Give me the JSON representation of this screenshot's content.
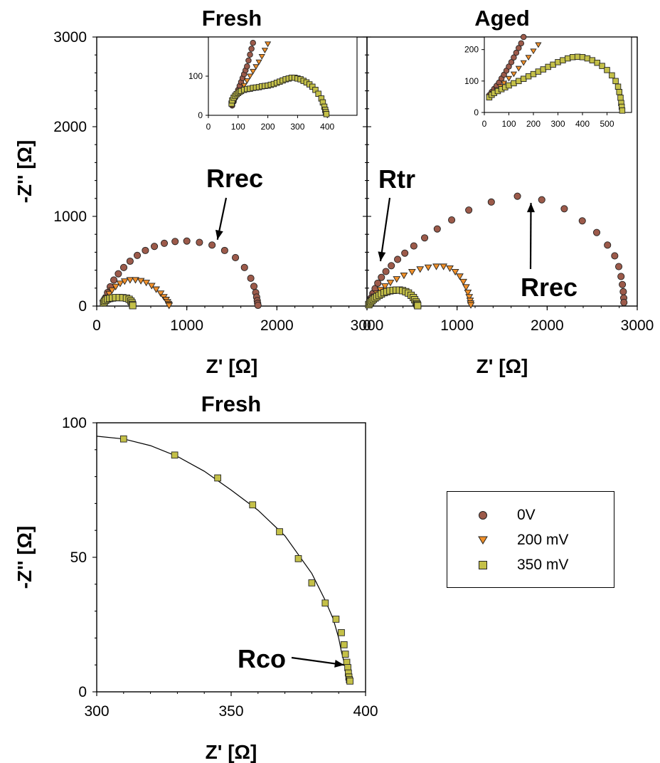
{
  "chart_data": [
    {
      "id": "fresh_main",
      "type": "scatter",
      "title": "Fresh",
      "xlabel": "Z' [Ω]",
      "ylabel": "-Z'' [Ω]",
      "xlim": [
        0,
        3000
      ],
      "ylim": [
        0,
        3000
      ],
      "xticks": [
        0,
        1000,
        2000,
        3000
      ],
      "yticks": [
        0,
        1000,
        2000,
        3000
      ],
      "annotations": [
        {
          "text": "Rrec",
          "points_to": [
            1340,
            740
          ]
        }
      ],
      "series": [
        {
          "name": "0V",
          "x": [
            75,
            95,
            120,
            150,
            190,
            240,
            300,
            370,
            450,
            540,
            640,
            750,
            870,
            1000,
            1140,
            1280,
            1420,
            1540,
            1640,
            1710,
            1745,
            1765,
            1775,
            1782,
            1786,
            1790
          ],
          "y": [
            40,
            90,
            150,
            215,
            290,
            360,
            430,
            500,
            565,
            620,
            665,
            700,
            720,
            725,
            710,
            680,
            620,
            540,
            430,
            310,
            220,
            150,
            100,
            60,
            30,
            8
          ]
        },
        {
          "name": "200 mV",
          "x": [
            70,
            90,
            110,
            140,
            170,
            210,
            260,
            310,
            370,
            430,
            490,
            550,
            610,
            660,
            710,
            745,
            770,
            785,
            795,
            800,
            803
          ],
          "y": [
            30,
            60,
            95,
            135,
            175,
            215,
            250,
            275,
            290,
            290,
            280,
            260,
            225,
            185,
            140,
            100,
            70,
            45,
            25,
            12,
            4
          ]
        },
        {
          "name": "350 mV",
          "x": [
            75,
            85,
            100,
            120,
            145,
            175,
            210,
            250,
            290,
            330,
            360,
            380,
            392,
            398,
            400
          ],
          "y": [
            35,
            50,
            65,
            78,
            85,
            90,
            94,
            95,
            93,
            88,
            75,
            55,
            35,
            15,
            5
          ]
        }
      ],
      "inset": {
        "xlim": [
          0,
          500
        ],
        "ylim": [
          0,
          200
        ],
        "xticks": [
          0,
          100,
          200,
          300,
          400
        ],
        "yticks": [
          0,
          100
        ],
        "series": [
          {
            "name": "0V",
            "x": [
              80,
              85,
              90,
              95,
              100,
              105,
              110,
              115,
              120,
              125,
              130,
              135,
              140,
              145,
              150,
              155
            ],
            "y": [
              25,
              35,
              45,
              55,
              65,
              75,
              85,
              95,
              105,
              115,
              125,
              140,
              155,
              170,
              185,
              210
            ]
          },
          {
            "name": "200 mV",
            "x": [
              80,
              85,
              90,
              100,
              110,
              120,
              130,
              140,
              150,
              160,
              170,
              180,
              190,
              200
            ],
            "y": [
              25,
              32,
              40,
              52,
              64,
              76,
              88,
              100,
              112,
              124,
              136,
              150,
              166,
              182
            ]
          },
          {
            "name": "350 mV",
            "x": [
              78,
              80,
              85,
              90,
              95,
              100,
              105,
              110,
              120,
              130,
              140,
              150,
              160,
              170,
              180,
              190,
              200,
              210,
              220,
              230,
              240,
              250,
              260,
              270,
              280,
              290,
              300,
              310,
              320,
              330,
              340,
              350,
              360,
              370,
              380,
              385,
              390,
              393,
              395,
              397
            ],
            "y": [
              30,
              38,
              45,
              50,
              54,
              57,
              60,
              62,
              65,
              67,
              68,
              70,
              71,
              72,
              74,
              75,
              76,
              78,
              80,
              83,
              86,
              89,
              92,
              94,
              96,
              96,
              94,
              92,
              88,
              84,
              79,
              73,
              65,
              55,
              43,
              33,
              22,
              14,
              8,
              3
            ]
          }
        ]
      }
    },
    {
      "id": "aged_main",
      "type": "scatter",
      "title": "Aged",
      "xlabel": "Z' [Ω]",
      "xlim": [
        0,
        3000
      ],
      "ylim": [
        0,
        3000
      ],
      "xticks": [
        0,
        1000,
        2000,
        3000
      ],
      "annotations": [
        {
          "text": "Rtr",
          "points_to": [
            150,
            500
          ]
        },
        {
          "text": "Rrec",
          "points_to": [
            1820,
            1150
          ]
        }
      ],
      "series": [
        {
          "name": "0V",
          "x": [
            20,
            30,
            45,
            65,
            90,
            120,
            160,
            210,
            270,
            340,
            420,
            520,
            640,
            780,
            940,
            1130,
            1380,
            1670,
            1940,
            2190,
            2390,
            2550,
            2670,
            2750,
            2795,
            2820,
            2835,
            2845,
            2850,
            2852
          ],
          "y": [
            20,
            50,
            90,
            140,
            195,
            255,
            320,
            385,
            450,
            520,
            590,
            670,
            760,
            860,
            960,
            1070,
            1160,
            1225,
            1185,
            1085,
            950,
            820,
            680,
            560,
            440,
            330,
            240,
            160,
            90,
            40
          ]
        },
        {
          "name": "200 mV",
          "x": [
            20,
            35,
            55,
            80,
            110,
            150,
            200,
            260,
            330,
            410,
            500,
            590,
            680,
            770,
            850,
            920,
            980,
            1030,
            1070,
            1100,
            1120,
            1135,
            1145,
            1150,
            1153
          ],
          "y": [
            15,
            40,
            70,
            105,
            140,
            180,
            220,
            260,
            300,
            340,
            380,
            410,
            430,
            440,
            440,
            420,
            380,
            330,
            270,
            210,
            150,
            100,
            60,
            30,
            10
          ]
        },
        {
          "name": "350 mV",
          "x": [
            20,
            30,
            40,
            55,
            70,
            90,
            110,
            135,
            160,
            190,
            220,
            255,
            290,
            325,
            360,
            395,
            430,
            460,
            490,
            515,
            530,
            545,
            555,
            560,
            563
          ],
          "y": [
            15,
            30,
            45,
            60,
            75,
            90,
            105,
            120,
            135,
            150,
            160,
            170,
            175,
            178,
            178,
            172,
            160,
            145,
            120,
            95,
            70,
            45,
            25,
            12,
            4
          ]
        }
      ],
      "inset": {
        "xlim": [
          0,
          600
        ],
        "ylim": [
          0,
          240
        ],
        "xticks": [
          0,
          100,
          200,
          300,
          400,
          500
        ],
        "yticks": [
          0,
          100,
          200
        ],
        "series": [
          {
            "name": "0V",
            "x": [
              20,
              30,
              40,
              50,
              60,
              70,
              80,
              90,
              100,
              110,
              120,
              130,
              140,
              150,
              160
            ],
            "y": [
              55,
              65,
              75,
              85,
              95,
              108,
              120,
              133,
              146,
              160,
              175,
              190,
              205,
              220,
              240
            ]
          },
          {
            "name": "200 mV",
            "x": [
              20,
              35,
              50,
              65,
              80,
              100,
              120,
              140,
              160,
              180,
              200,
              220
            ],
            "y": [
              50,
              60,
              72,
              82,
              93,
              108,
              122,
              140,
              158,
              175,
              195,
              215
            ]
          },
          {
            "name": "350 mV",
            "x": [
              20,
              30,
              40,
              55,
              70,
              85,
              100,
              120,
              140,
              160,
              180,
              200,
              220,
              240,
              260,
              280,
              300,
              320,
              340,
              360,
              380,
              400,
              420,
              440,
              460,
              480,
              500,
              520,
              535,
              545,
              550,
              555,
              558,
              560,
              562
            ],
            "y": [
              48,
              56,
              62,
              68,
              74,
              80,
              86,
              93,
              100,
              107,
              115,
              122,
              130,
              137,
              145,
              152,
              160,
              166,
              172,
              176,
              177,
              176,
              172,
              166,
              158,
              148,
              135,
              118,
              100,
              82,
              65,
              47,
              30,
              18,
              6
            ]
          }
        ]
      }
    },
    {
      "id": "fresh_zoom",
      "type": "line",
      "title": "Fresh",
      "xlabel": "Z' [Ω]",
      "ylabel": "-Z'' [Ω]",
      "xlim": [
        300,
        400
      ],
      "ylim": [
        0,
        100
      ],
      "xticks": [
        300,
        350,
        400
      ],
      "yticks": [
        0,
        50,
        100
      ],
      "annotations": [
        {
          "text": "Rco",
          "points_to": [
            392,
            10
          ]
        }
      ],
      "curve": {
        "x": [
          300,
          310,
          320,
          330,
          340,
          350,
          360,
          370,
          380,
          385,
          388,
          390,
          391,
          392,
          393,
          394,
          394
        ],
        "y": [
          95,
          94,
          91.5,
          87.5,
          82,
          75,
          67.5,
          58,
          44,
          34,
          27,
          20,
          15,
          11,
          8,
          5,
          4
        ]
      },
      "series": [
        {
          "name": "350 mV",
          "x": [
            310,
            329,
            345,
            358,
            368,
            375,
            380,
            385,
            389,
            391,
            392,
            392.5,
            393,
            393.4,
            393.6,
            393.8,
            394,
            394.2
          ],
          "y": [
            94,
            88,
            79.5,
            69.5,
            59.5,
            49.5,
            40.5,
            33,
            27,
            22,
            17.5,
            14,
            11,
            9,
            7,
            5.5,
            4.5,
            4
          ]
        }
      ]
    }
  ],
  "legend": {
    "entries": [
      {
        "label": "0V",
        "marker": "circle",
        "color": "#9c5a4a"
      },
      {
        "label": "200 mV",
        "marker": "triangle-down",
        "color": "#f0902a"
      },
      {
        "label": "350 mV",
        "marker": "square",
        "color": "#c4c048"
      }
    ]
  },
  "colors": {
    "0V": "#9c5a4a",
    "200 mV": "#f0902a",
    "350 mV": "#c4c048"
  }
}
